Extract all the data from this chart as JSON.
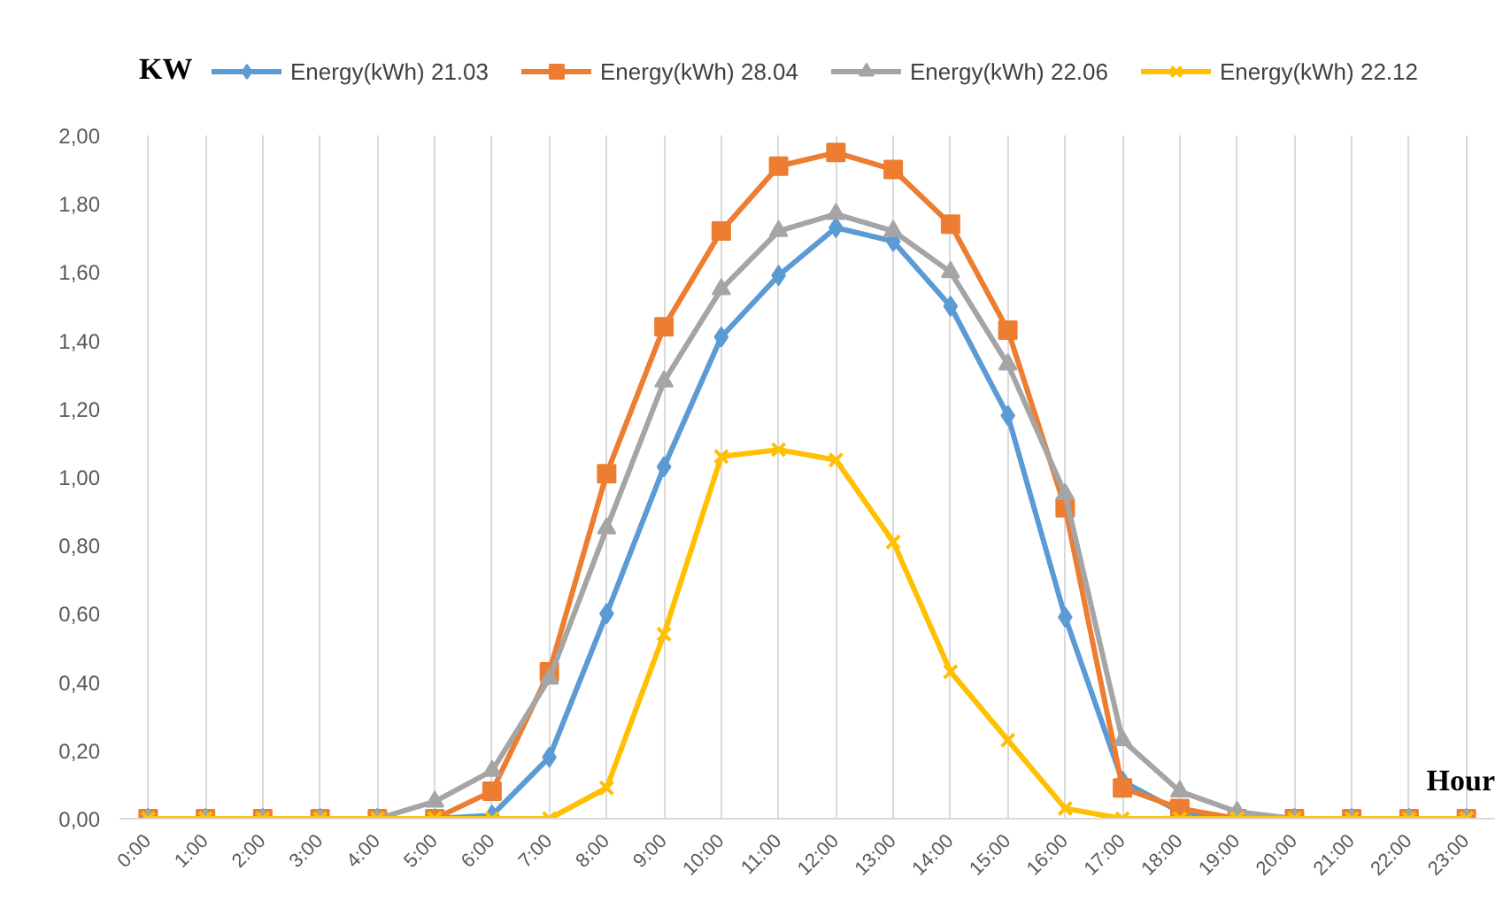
{
  "chart_data": {
    "type": "line",
    "ylabel": "KW",
    "xlabel": "Hour",
    "categories": [
      "0:00",
      "1:00",
      "2:00",
      "3:00",
      "4:00",
      "5:00",
      "6:00",
      "7:00",
      "8:00",
      "9:00",
      "10:00",
      "11:00",
      "12:00",
      "13:00",
      "14:00",
      "15:00",
      "16:00",
      "17:00",
      "18:00",
      "19:00",
      "20:00",
      "21:00",
      "22:00",
      "23:00"
    ],
    "series": [
      {
        "name": "Energy(kWh) 21.03",
        "color": "#5b9bd5",
        "marker": "diamond",
        "values": [
          null,
          null,
          null,
          null,
          0,
          0,
          0.01,
          0.18,
          0.6,
          1.03,
          1.41,
          1.59,
          1.73,
          1.69,
          1.5,
          1.18,
          0.59,
          0.11,
          0.02,
          0,
          0,
          null,
          null,
          null
        ]
      },
      {
        "name": "Energy(kWh) 28.04",
        "color": "#ed7d31",
        "marker": "square",
        "values": [
          0,
          0,
          0,
          0,
          0,
          0,
          0.08,
          0.43,
          1.01,
          1.44,
          1.72,
          1.91,
          1.95,
          1.9,
          1.74,
          1.43,
          0.91,
          0.09,
          0.03,
          0,
          0,
          0,
          0,
          0
        ]
      },
      {
        "name": "Energy(kWh) 22.06",
        "color": "#a5a5a5",
        "marker": "triangle",
        "values": [
          0,
          0,
          0,
          0,
          0,
          0.05,
          0.14,
          0.41,
          0.85,
          1.28,
          1.55,
          1.72,
          1.77,
          1.72,
          1.6,
          1.33,
          0.95,
          0.23,
          0.08,
          0.02,
          0,
          0,
          0,
          0
        ]
      },
      {
        "name": "Energy(kWh) 22.12",
        "color": "#ffc000",
        "marker": "cross",
        "values": [
          0,
          0,
          0,
          0,
          0,
          0,
          0,
          0,
          0.09,
          0.54,
          1.06,
          1.08,
          1.05,
          0.81,
          0.43,
          0.23,
          0.03,
          0,
          0,
          0,
          0,
          0,
          0,
          0
        ]
      }
    ],
    "ylim": [
      0,
      2.0
    ],
    "yticks": [
      {
        "value": 0,
        "label": "0,00"
      },
      {
        "value": 0.2,
        "label": "0,20"
      },
      {
        "value": 0.4,
        "label": "0,40"
      },
      {
        "value": 0.6,
        "label": "0,60"
      },
      {
        "value": 0.8,
        "label": "0,80"
      },
      {
        "value": 1.0,
        "label": "1,00"
      },
      {
        "value": 1.2,
        "label": "1,20"
      },
      {
        "value": 1.4,
        "label": "1,40"
      },
      {
        "value": 1.6,
        "label": "1,60"
      },
      {
        "value": 1.8,
        "label": "1,80"
      },
      {
        "value": 2.0,
        "label": "2,00"
      }
    ],
    "grid": "x",
    "legend": "top",
    "line_style": "solid"
  }
}
